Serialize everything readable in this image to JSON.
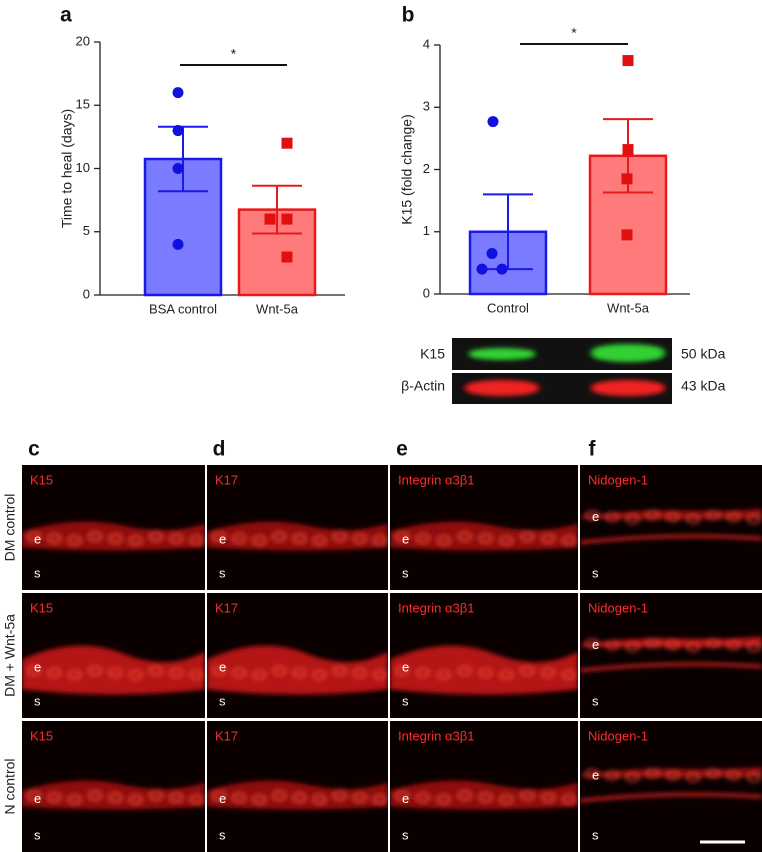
{
  "chart_data": [
    {
      "type": "bar",
      "label": "a",
      "ylabel": "Time to heal (days)",
      "categories": [
        "BSA control",
        "Wnt-5a"
      ],
      "values": [
        10.75,
        6.75
      ],
      "errors": [
        2.55,
        1.89
      ],
      "points": [
        [
          16,
          13,
          10,
          4
        ],
        [
          12,
          6,
          6,
          3
        ]
      ],
      "markers": [
        "circle",
        "square"
      ],
      "colors": [
        "#7b7bff",
        "#ff7b7b"
      ],
      "edge_colors": [
        "#1a1ae6",
        "#e61a1a"
      ],
      "point_colors": [
        "#1010e0",
        "#e01010"
      ],
      "significance": "*",
      "ylim": [
        0,
        20
      ],
      "yticks": [
        0,
        5,
        10,
        15,
        20
      ]
    },
    {
      "type": "bar",
      "label": "b",
      "ylabel": "K15 (fold change)",
      "categories": [
        "Control",
        "Wnt-5a"
      ],
      "values": [
        1.0,
        2.22
      ],
      "errors": [
        0.6,
        0.59
      ],
      "points": [
        [
          2.77,
          0.65,
          0.4,
          0.4
        ],
        [
          3.75,
          2.32,
          1.85,
          0.95
        ]
      ],
      "markers": [
        "circle",
        "square"
      ],
      "colors": [
        "#7b7bff",
        "#ff7b7b"
      ],
      "edge_colors": [
        "#1a1ae6",
        "#e61a1a"
      ],
      "point_colors": [
        "#1010e0",
        "#e01010"
      ],
      "significance": "*",
      "ylim": [
        0,
        4
      ],
      "yticks": [
        0,
        1,
        2,
        3,
        4
      ]
    }
  ],
  "blot": {
    "rows": [
      {
        "label": "K15",
        "size": "50 kDa"
      },
      {
        "label": "β-Actin",
        "size": "43 kDa"
      }
    ]
  },
  "micrographs": {
    "columns": [
      {
        "label": "c",
        "stain": "K15"
      },
      {
        "label": "d",
        "stain": "K17"
      },
      {
        "label": "e",
        "stain": "Integrin α3β1"
      },
      {
        "label": "f",
        "stain": "Nidogen-1"
      }
    ],
    "rows": [
      "DM control",
      "DM + Wnt-5a",
      "N control"
    ],
    "epidermis": "e",
    "stroma": "s"
  }
}
